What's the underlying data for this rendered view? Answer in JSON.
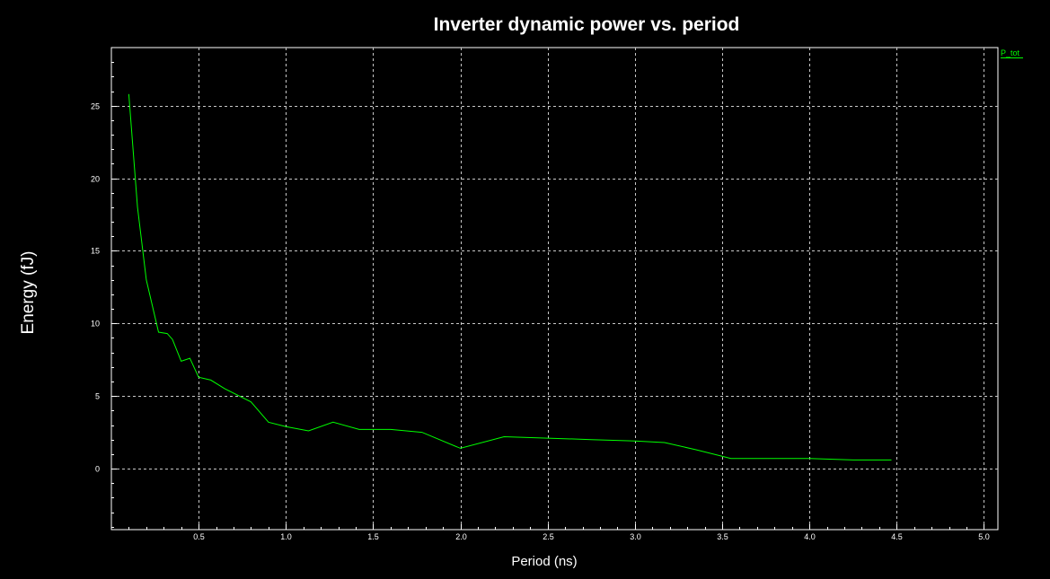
{
  "chart_data": {
    "type": "line",
    "title": "Inverter dynamic power vs. period",
    "xlabel": "Period (ns)",
    "ylabel": "Energy (fJ)",
    "xlim": [
      0.0,
      5.08
    ],
    "ylim": [
      -4.2,
      29
    ],
    "x_ticks": [
      0.5,
      1.0,
      1.5,
      2.0,
      2.5,
      3.0,
      3.5,
      4.0,
      4.5,
      5.0
    ],
    "x_tick_labels": [
      "0.5",
      "1.0",
      "1.5",
      "2.0",
      "2.5",
      "3.0",
      "3.5",
      "4.0",
      "4.5",
      "5.0"
    ],
    "y_ticks": [
      0,
      5,
      10,
      15,
      20,
      25
    ],
    "y_tick_labels": [
      "0",
      "5",
      "10",
      "15",
      "20",
      "25"
    ],
    "grid": true,
    "legend_position": "top-right",
    "series": [
      {
        "name": "P_tot",
        "color": "#00ff00",
        "x": [
          0.1,
          0.15,
          0.2,
          0.27,
          0.32,
          0.35,
          0.4,
          0.45,
          0.5,
          0.57,
          0.65,
          0.8,
          0.9,
          1.0,
          1.13,
          1.27,
          1.42,
          1.6,
          1.78,
          2.0,
          2.25,
          2.5,
          2.75,
          3.0,
          3.17,
          3.35,
          3.55,
          3.75,
          4.0,
          4.25,
          4.47
        ],
        "y": [
          25.8,
          18.0,
          13.0,
          9.4,
          9.3,
          8.9,
          7.4,
          7.6,
          6.3,
          6.1,
          5.5,
          4.6,
          3.2,
          2.9,
          2.6,
          3.2,
          2.7,
          2.7,
          2.5,
          1.4,
          2.2,
          2.1,
          2.0,
          1.9,
          1.8,
          1.3,
          0.7,
          0.7,
          0.7,
          0.6,
          0.6
        ]
      }
    ]
  },
  "colors": {
    "background": "#000000",
    "axis": "#ffffff",
    "grid": "#c8c8c8",
    "series": "#00ff00"
  }
}
